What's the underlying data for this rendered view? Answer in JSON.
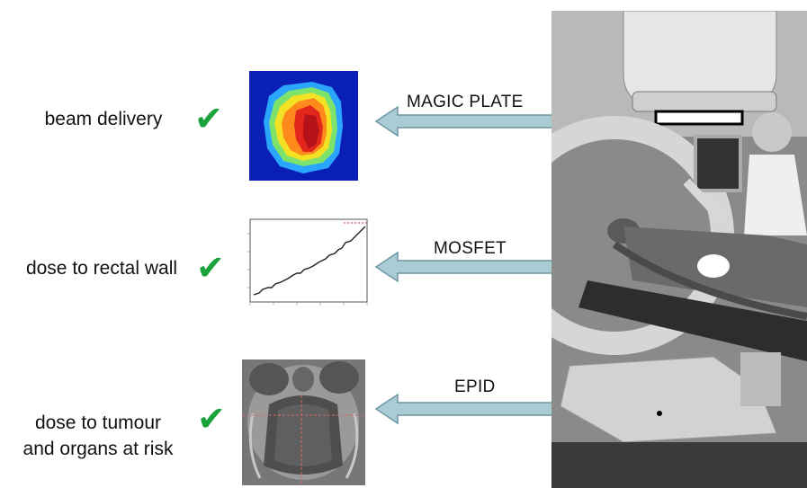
{
  "rows": [
    {
      "label": "beam delivery",
      "check": "✔",
      "device": "MAGIC PLATE"
    },
    {
      "label": "dose to rectal wall",
      "check": "✔",
      "device": "MOSFET"
    },
    {
      "label_line1": "dose to tumour",
      "label_line2": "and organs at risk",
      "check": "✔",
      "device": "EPID"
    }
  ],
  "icons": {
    "check": "check-icon",
    "arrow": "left-arrow-icon"
  },
  "colors": {
    "arrow_fill": "#a9ccd5",
    "arrow_stroke": "#6c97a3",
    "check_green": "#1aa33a"
  }
}
